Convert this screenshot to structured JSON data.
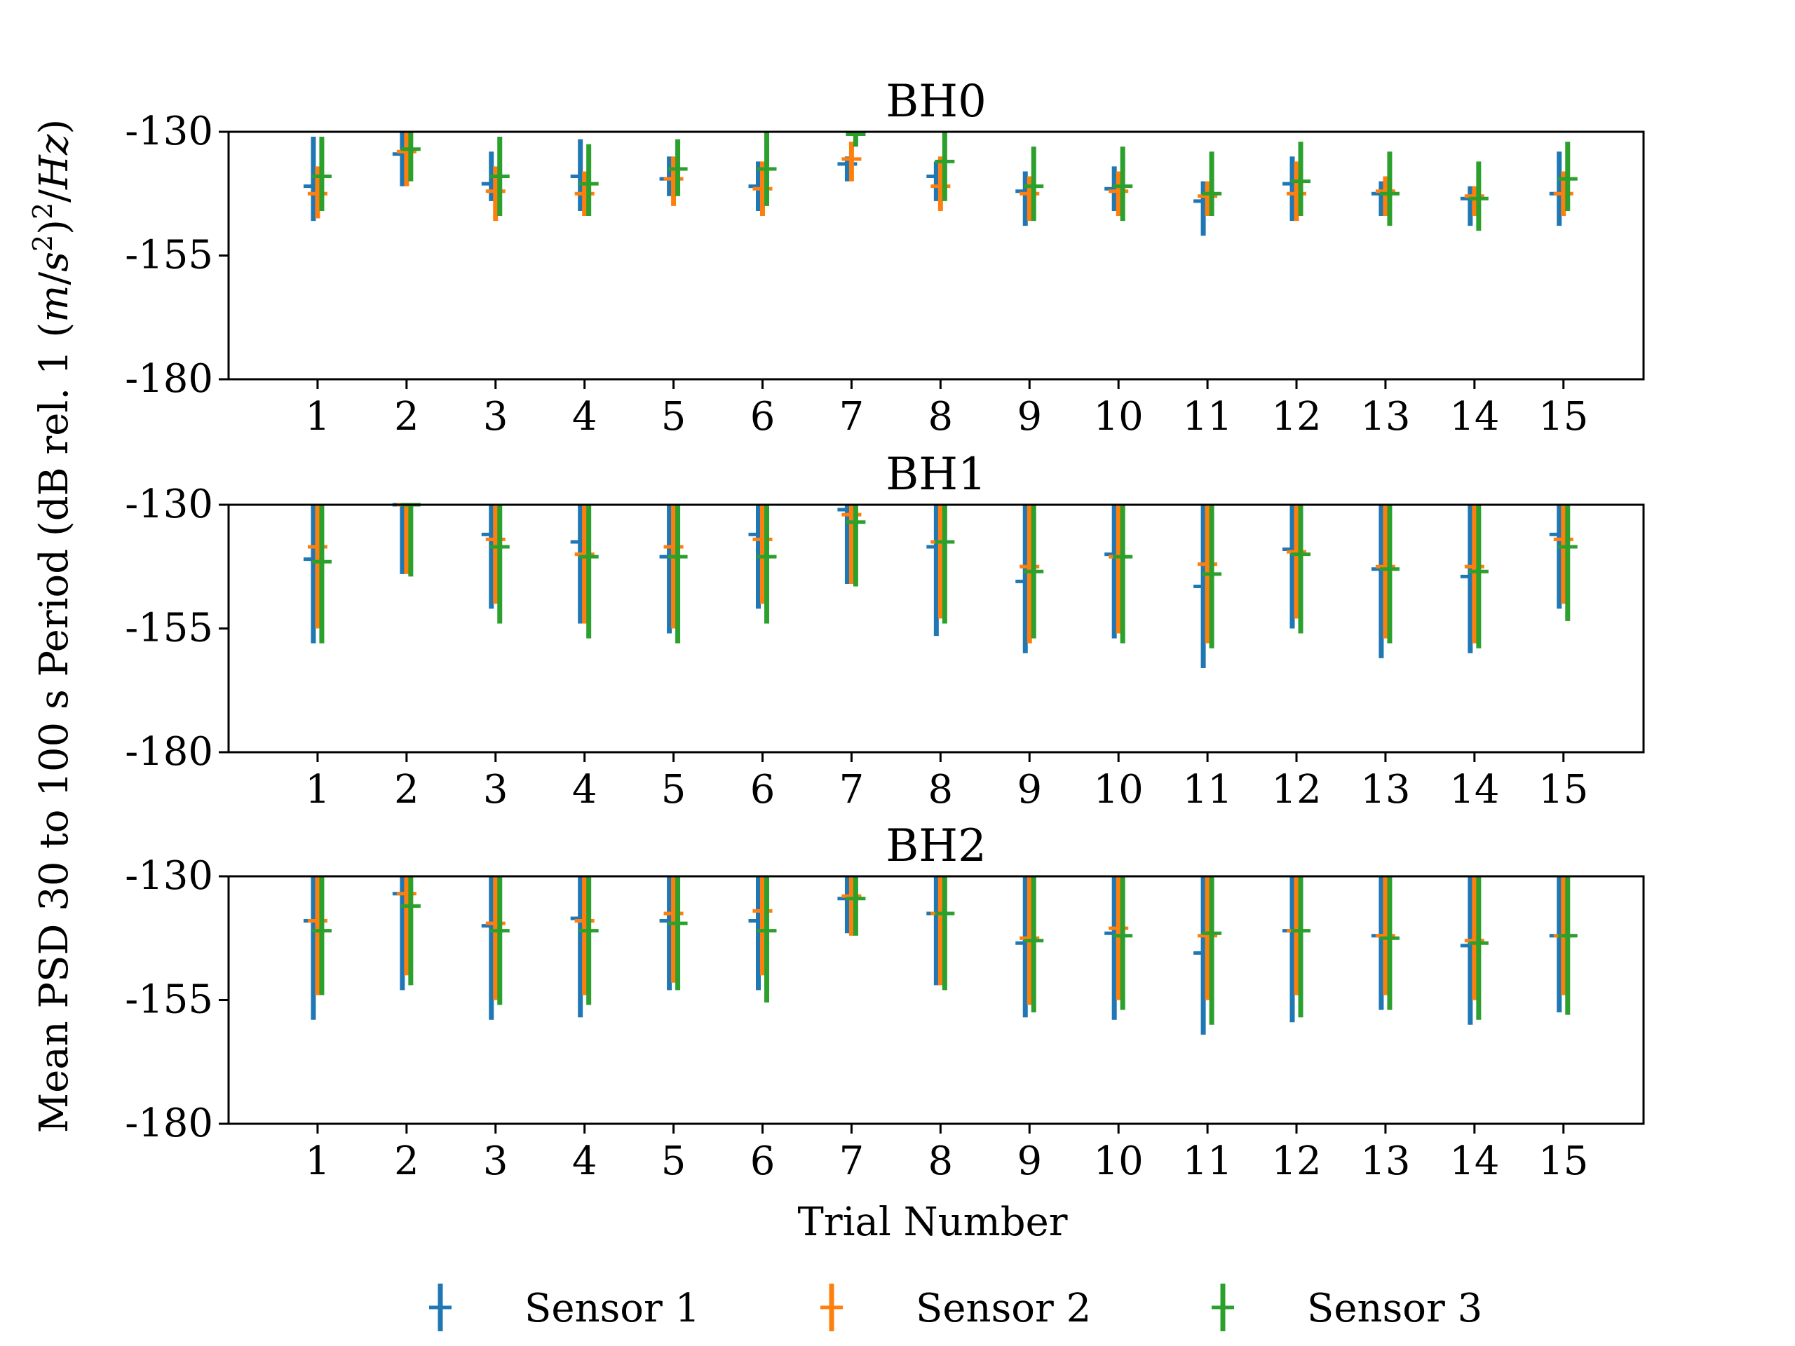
{
  "chart_data": {
    "type": "errorbar",
    "ylabel": "Mean PSD 30 to 100 s Period (dB rel. 1 (m/s²)²/Hz)",
    "xlabel": "Trial Number",
    "categories": [
      "1",
      "2",
      "3",
      "4",
      "5",
      "6",
      "7",
      "8",
      "9",
      "10",
      "11",
      "12",
      "13",
      "14",
      "15"
    ],
    "xlim": [
      0.0,
      15.9
    ],
    "ylim": [
      -180,
      -130
    ],
    "yticks": [
      "-130",
      "-155",
      "-180"
    ],
    "grid": false,
    "legend_position": "bottom-center",
    "colors": {
      "Sensor 1": "#1f77b4",
      "Sensor 2": "#ff7f0e",
      "Sensor 3": "#2ca02c"
    },
    "panels": [
      {
        "title": "BH0",
        "series": [
          {
            "name": "Sensor 1",
            "mean": [
              -141.0,
              -134.5,
              -140.5,
              -139.0,
              -139.5,
              -141.0,
              -136.5,
              -139.0,
              -142.0,
              -141.5,
              -144.0,
              -140.5,
              -142.5,
              -143.5,
              -142.5
            ],
            "lower": [
              -148.0,
              -141.0,
              -144.0,
              -146.0,
              -143.0,
              -146.0,
              -140.0,
              -144.0,
              -149.0,
              -146.0,
              -151.0,
              -148.0,
              -147.0,
              -149.0,
              -149.0
            ],
            "upper": [
              -131.0,
              -130.0,
              -134.0,
              -131.5,
              -135.0,
              -136.0,
              -135.0,
              -136.0,
              -138.0,
              -137.0,
              -140.0,
              -135.0,
              -140.0,
              -141.0,
              -134.0
            ]
          },
          {
            "name": "Sensor 2",
            "mean": [
              -142.5,
              -134.0,
              -142.0,
              -142.5,
              -139.5,
              -141.5,
              -135.5,
              -141.0,
              -142.5,
              -142.0,
              -143.0,
              -142.5,
              -142.0,
              -143.0,
              -142.5
            ],
            "lower": [
              -147.5,
              -141.0,
              -148.0,
              -147.0,
              -145.0,
              -147.0,
              -140.0,
              -146.0,
              -148.0,
              -147.0,
              -147.0,
              -148.0,
              -147.0,
              -147.0,
              -147.0
            ],
            "upper": [
              -137.0,
              -130.0,
              -137.0,
              -138.0,
              -135.0,
              -136.0,
              -132.0,
              -135.0,
              -139.0,
              -138.0,
              -140.0,
              -136.0,
              -139.0,
              -141.0,
              -138.0
            ]
          },
          {
            "name": "Sensor 3",
            "mean": [
              -139.0,
              -133.5,
              -139.0,
              -140.5,
              -137.5,
              -137.5,
              -130.5,
              -136.0,
              -141.0,
              -141.0,
              -142.5,
              -140.0,
              -142.5,
              -143.5,
              -139.5
            ],
            "lower": [
              -146.0,
              -140.0,
              -147.0,
              -147.0,
              -143.0,
              -145.0,
              -133.0,
              -144.0,
              -148.0,
              -148.0,
              -147.0,
              -147.0,
              -149.0,
              -150.0,
              -146.0
            ],
            "upper": [
              -131.0,
              -130.0,
              -131.0,
              -132.5,
              -131.5,
              -130.0,
              -130.0,
              -130.0,
              -133.0,
              -133.0,
              -134.0,
              -132.0,
              -134.0,
              -136.0,
              -132.0
            ]
          }
        ]
      },
      {
        "title": "BH1",
        "series": [
          {
            "name": "Sensor 1",
            "mean": [
              -141.0,
              -130.0,
              -136.0,
              -137.5,
              -140.5,
              -136.0,
              -131.0,
              -138.5,
              -145.5,
              -140.0,
              -146.5,
              -139.0,
              -143.0,
              -144.5,
              -136.0
            ],
            "lower": [
              -158.0,
              -144.0,
              -151.0,
              -154.0,
              -156.0,
              -151.0,
              -146.0,
              -156.5,
              -160.0,
              -157.0,
              -163.0,
              -155.0,
              -161.0,
              -160.0,
              -151.0
            ],
            "upper": [
              -130.0,
              -130.0,
              -130.0,
              -130.0,
              -130.0,
              -130.0,
              -130.0,
              -130.0,
              -130.0,
              -130.0,
              -130.0,
              -130.0,
              -130.0,
              -130.0,
              -130.0
            ]
          },
          {
            "name": "Sensor 2",
            "mean": [
              -138.5,
              -130.0,
              -137.0,
              -140.0,
              -138.5,
              -137.0,
              -132.0,
              -137.5,
              -142.5,
              -140.5,
              -142.0,
              -139.5,
              -142.5,
              -142.5,
              -137.0
            ],
            "lower": [
              -155.0,
              -144.0,
              -150.0,
              -154.0,
              -155.0,
              -150.0,
              -146.0,
              -153.0,
              -158.0,
              -156.0,
              -158.0,
              -153.0,
              -157.0,
              -158.0,
              -150.0
            ],
            "upper": [
              -130.0,
              -130.0,
              -130.0,
              -130.0,
              -130.0,
              -130.0,
              -130.0,
              -130.0,
              -130.0,
              -130.0,
              -130.0,
              -130.0,
              -130.0,
              -130.0,
              -130.0
            ]
          },
          {
            "name": "Sensor 3",
            "mean": [
              -141.5,
              -130.0,
              -138.5,
              -140.5,
              -140.5,
              -140.5,
              -133.5,
              -137.5,
              -143.5,
              -140.5,
              -144.0,
              -140.0,
              -143.0,
              -143.5,
              -138.5
            ],
            "lower": [
              -158.0,
              -144.5,
              -154.0,
              -157.0,
              -158.0,
              -154.0,
              -146.5,
              -154.0,
              -157.0,
              -158.0,
              -159.0,
              -156.0,
              -158.0,
              -159.0,
              -153.5
            ],
            "upper": [
              -130.0,
              -130.0,
              -130.0,
              -130.0,
              -130.0,
              -130.0,
              -130.0,
              -130.0,
              -130.0,
              -130.0,
              -130.0,
              -130.0,
              -130.0,
              -130.0,
              -130.0
            ]
          }
        ]
      },
      {
        "title": "BH2",
        "series": [
          {
            "name": "Sensor 1",
            "mean": [
              -139.0,
              -133.5,
              -140.0,
              -138.5,
              -139.0,
              -139.0,
              -134.5,
              -137.5,
              -143.5,
              -141.5,
              -145.5,
              -141.0,
              -142.0,
              -144.0,
              -142.0
            ],
            "lower": [
              -159.0,
              -153.0,
              -159.0,
              -158.5,
              -153.0,
              -153.0,
              -141.5,
              -152.0,
              -158.5,
              -159.0,
              -162.0,
              -159.5,
              -157.0,
              -160.0,
              -157.5
            ],
            "upper": [
              -130.0,
              -130.0,
              -130.0,
              -130.0,
              -130.0,
              -130.0,
              -130.0,
              -130.0,
              -130.0,
              -130.0,
              -130.0,
              -130.0,
              -130.0,
              -130.0,
              -130.0
            ]
          },
          {
            "name": "Sensor 2",
            "mean": [
              -139.0,
              -133.5,
              -139.5,
              -139.0,
              -137.5,
              -137.0,
              -134.0,
              -137.5,
              -142.5,
              -140.5,
              -142.0,
              -141.0,
              -142.0,
              -143.0,
              -142.0
            ],
            "lower": [
              -154.0,
              -150.0,
              -155.0,
              -154.0,
              -151.5,
              -150.0,
              -142.0,
              -152.0,
              -156.0,
              -155.0,
              -155.0,
              -154.0,
              -154.0,
              -155.0,
              -154.0
            ],
            "upper": [
              -130.0,
              -130.0,
              -130.0,
              -130.0,
              -130.0,
              -130.0,
              -130.0,
              -130.0,
              -130.0,
              -130.0,
              -130.0,
              -130.0,
              -130.0,
              -130.0,
              -130.0
            ]
          },
          {
            "name": "Sensor 3",
            "mean": [
              -141.0,
              -136.0,
              -141.0,
              -141.0,
              -139.5,
              -141.0,
              -134.5,
              -137.5,
              -143.0,
              -142.0,
              -141.5,
              -141.0,
              -142.5,
              -143.5,
              -142.0
            ],
            "lower": [
              -154.0,
              -152.0,
              -156.0,
              -156.0,
              -153.0,
              -155.5,
              -142.0,
              -153.0,
              -157.5,
              -157.0,
              -160.0,
              -158.5,
              -157.0,
              -159.0,
              -158.0
            ],
            "upper": [
              -130.0,
              -130.0,
              -130.0,
              -130.0,
              -130.0,
              -130.0,
              -130.0,
              -130.0,
              -130.0,
              -130.0,
              -130.0,
              -130.0,
              -130.0,
              -130.0,
              -130.0
            ]
          }
        ]
      }
    ]
  }
}
